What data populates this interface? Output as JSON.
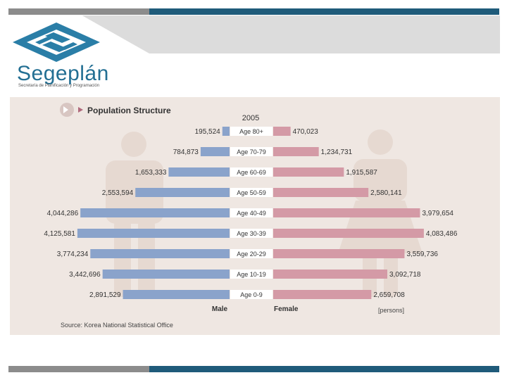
{
  "brand": {
    "name": "Segeplán",
    "subtitle": "Secretaría de Planificación y Programación"
  },
  "colors": {
    "male": "#8aa3cb",
    "female": "#d49aa6",
    "panel": "#efe7e2",
    "accent_blue": "#1f5b7a",
    "accent_gray": "#8c8c8c"
  },
  "chart_data": {
    "type": "bar",
    "title": "Population Structure",
    "year": "2005",
    "categories": [
      "Age 80+",
      "Age 70-79",
      "Age 60-69",
      "Age 50-59",
      "Age 40-49",
      "Age 30-39",
      "Age 20-29",
      "Age 10-19",
      "Age 0-9"
    ],
    "series": [
      {
        "name": "Male",
        "values": [
          195524,
          784873,
          1653333,
          2553594,
          4044286,
          4125581,
          3774234,
          3442696,
          2891529
        ],
        "labels": [
          "195,524",
          "784,873",
          "1,653,333",
          "2,553,594",
          "4,044,286",
          "4,125,581",
          "3,774,234",
          "3,442,696",
          "2,891,529"
        ]
      },
      {
        "name": "Female",
        "values": [
          470023,
          1234731,
          1915587,
          2580141,
          3979654,
          4083486,
          3559736,
          3092718,
          2659708
        ],
        "labels": [
          "470,023",
          "1,234,731",
          "1,915,587",
          "2,580,141",
          "3,979,654",
          "4,083,486",
          "3,559,736",
          "3,092,718",
          "2,659,708"
        ]
      }
    ],
    "unit": "[persons]",
    "source": "Source: Korea National Statistical Office",
    "xlim": [
      0,
      4200000
    ]
  }
}
